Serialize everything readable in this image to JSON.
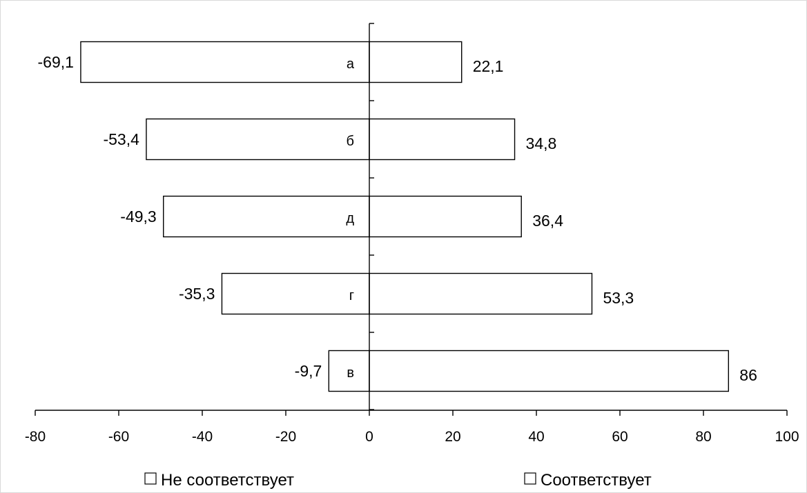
{
  "chart_data": {
    "type": "bar",
    "orientation": "horizontal",
    "stacked": "diverging",
    "categories": [
      "а",
      "б",
      "д",
      "г",
      "в"
    ],
    "series": [
      {
        "name": "Не соответствует",
        "values": [
          -69.1,
          -53.4,
          -49.3,
          -35.3,
          -9.7
        ],
        "labels": [
          "-69,1",
          "-53,4",
          "-49,3",
          "-35,3",
          "-9,7"
        ]
      },
      {
        "name": "Соответствует",
        "values": [
          22.1,
          34.8,
          36.4,
          53.3,
          86
        ],
        "labels": [
          "22,1",
          "34,8",
          "36,4",
          "53,3",
          "86"
        ]
      }
    ],
    "xlim": [
      -80,
      100
    ],
    "x_ticks": [
      -80,
      -60,
      -40,
      -20,
      0,
      20,
      40,
      60,
      80,
      100
    ],
    "grid": false,
    "legend_position": "bottom",
    "bar_fill": "#ffffff",
    "bar_stroke": "#000000"
  }
}
